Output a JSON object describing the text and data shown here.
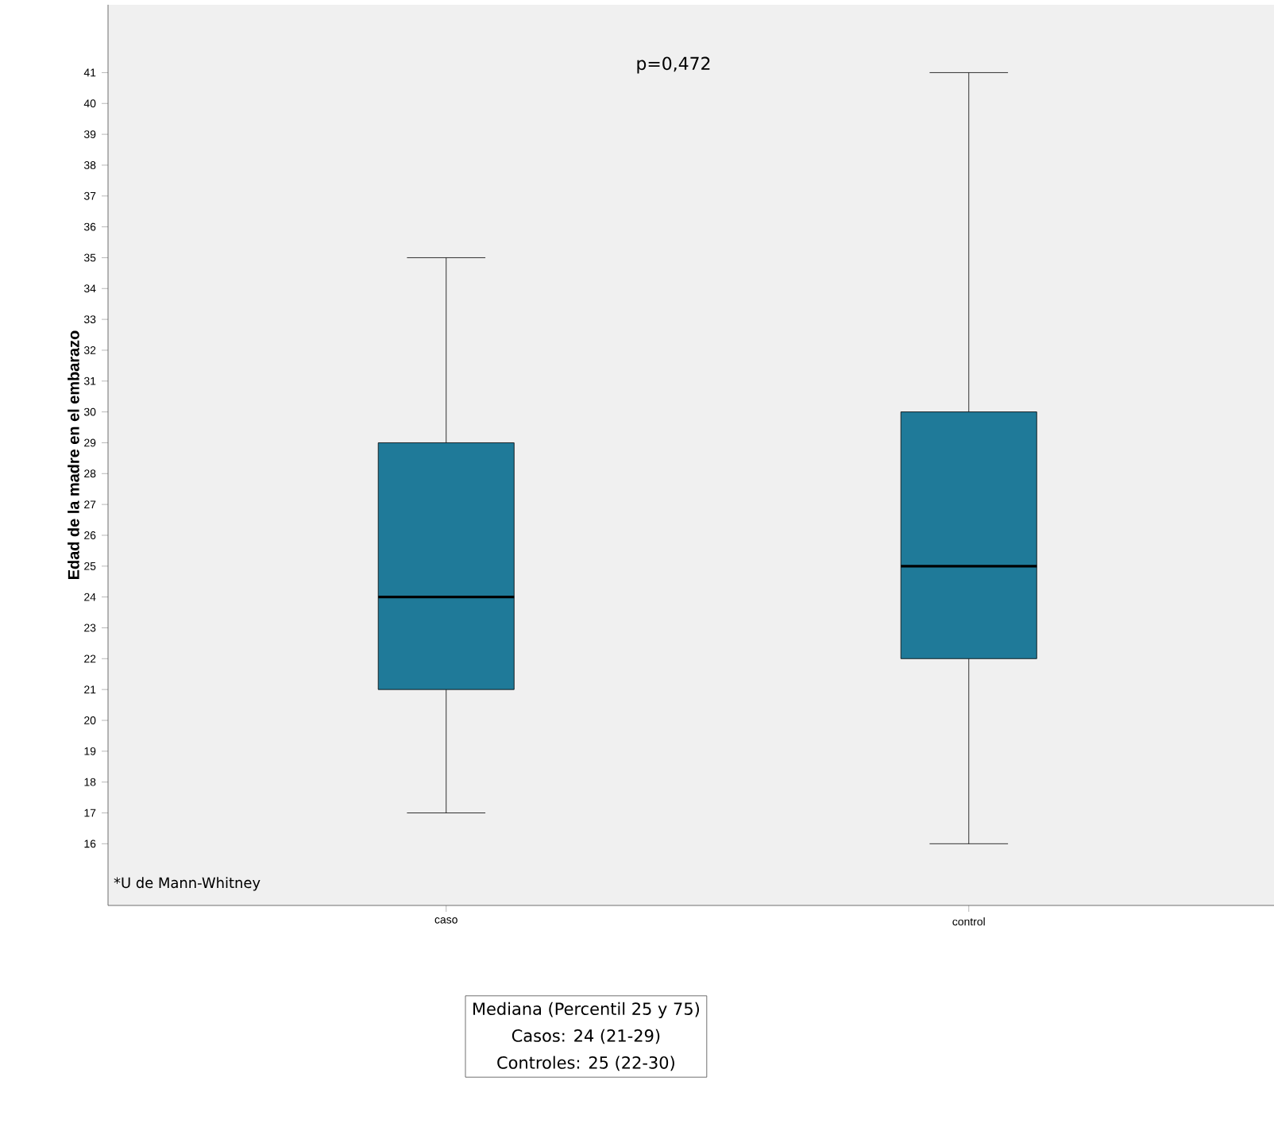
{
  "chart_data": {
    "type": "box",
    "ylabel": "Edad de la madre en el embarazo",
    "categories": [
      "caso",
      "control"
    ],
    "color": "#1f7a99",
    "boxes": [
      {
        "low": 17,
        "q1": 21,
        "median": 24,
        "q3": 29,
        "high": 35
      },
      {
        "low": 16,
        "q1": 22,
        "median": 25,
        "q3": 30,
        "high": 41
      }
    ],
    "ylim": [
      14,
      43.2
    ],
    "yticks": [
      16,
      17,
      18,
      19,
      20,
      21,
      22,
      23,
      24,
      25,
      26,
      27,
      28,
      29,
      30,
      31,
      32,
      33,
      34,
      35,
      36,
      37,
      38,
      39,
      40,
      41
    ],
    "annotations": [
      "p=0,472",
      "*U de Mann-Whitney",
      "Mediana (Percentil 25 y 75)",
      "Casos: 24 (21-29)",
      "Controles: 25 (22-30)"
    ]
  }
}
